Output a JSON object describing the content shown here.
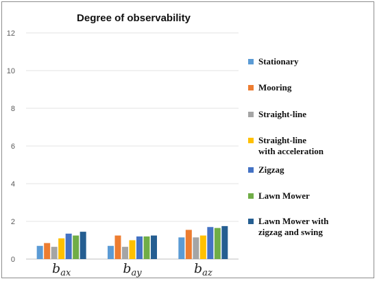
{
  "chart_data": {
    "type": "bar",
    "title": "Degree of observability",
    "categories": [
      {
        "base": "b",
        "sub": "ax"
      },
      {
        "base": "b",
        "sub": "ay"
      },
      {
        "base": "b",
        "sub": "az"
      }
    ],
    "ylim": [
      0,
      12
    ],
    "yticks": [
      "0",
      "2",
      "4",
      "6",
      "8",
      "10",
      "12"
    ],
    "grid": true,
    "legend_position": "right",
    "series": [
      {
        "name": "Stationary",
        "color": "#5b9bd5",
        "values": [
          0.7,
          0.7,
          1.15
        ]
      },
      {
        "name": "Mooring",
        "color": "#ed7d31",
        "values": [
          0.85,
          1.25,
          1.55
        ]
      },
      {
        "name": "Straight-line",
        "color": "#a5a5a5",
        "values": [
          0.65,
          0.65,
          1.15
        ]
      },
      {
        "name": "Straight-line\nwith acceleration",
        "color": "#ffc000",
        "values": [
          1.1,
          1.0,
          1.25
        ]
      },
      {
        "name": "Zigzag",
        "color": "#4472c4",
        "values": [
          1.35,
          1.2,
          1.7
        ]
      },
      {
        "name": "Lawn Mower",
        "color": "#70ad47",
        "values": [
          1.25,
          1.2,
          1.65
        ]
      },
      {
        "name": "Lawn Mower with\nzigzag and swing",
        "color": "#255e91",
        "values": [
          1.45,
          1.25,
          1.75
        ]
      }
    ]
  }
}
